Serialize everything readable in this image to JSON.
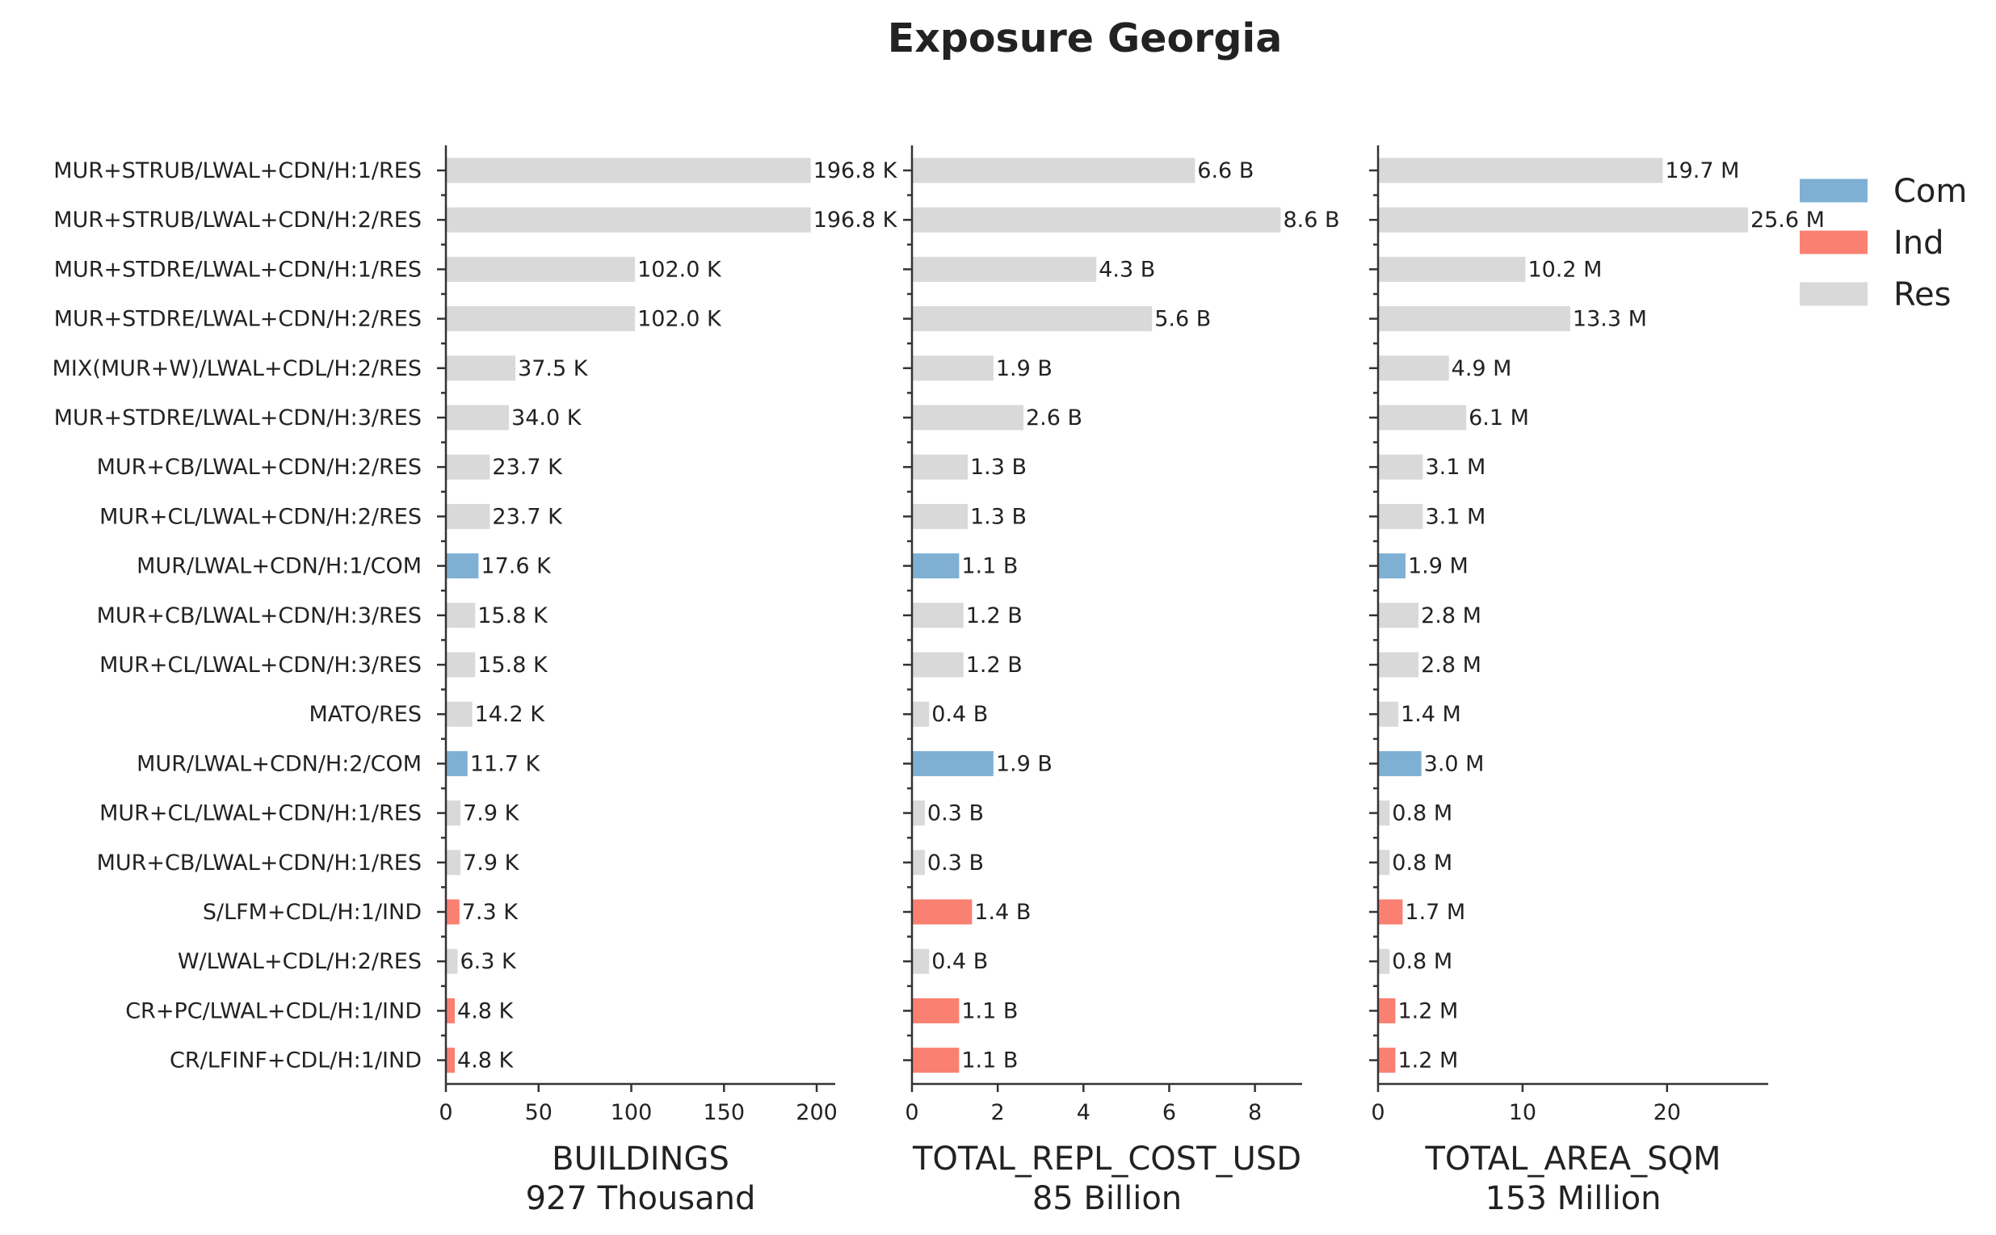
{
  "chart_data": {
    "type": "bar",
    "orientation": "horizontal",
    "title": "Exposure Georgia",
    "categories": [
      "MUR+STRUB/LWAL+CDN/H:1/RES",
      "MUR+STRUB/LWAL+CDN/H:2/RES",
      "MUR+STDRE/LWAL+CDN/H:1/RES",
      "MUR+STDRE/LWAL+CDN/H:2/RES",
      "MIX(MUR+W)/LWAL+CDL/H:2/RES",
      "MUR+STDRE/LWAL+CDN/H:3/RES",
      "MUR+CB/LWAL+CDN/H:2/RES",
      "MUR+CL/LWAL+CDN/H:2/RES",
      "MUR/LWAL+CDN/H:1/COM",
      "MUR+CB/LWAL+CDN/H:3/RES",
      "MUR+CL/LWAL+CDN/H:3/RES",
      "MATO/RES",
      "MUR/LWAL+CDN/H:2/COM",
      "MUR+CL/LWAL+CDN/H:1/RES",
      "MUR+CB/LWAL+CDN/H:1/RES",
      "S/LFM+CDL/H:1/IND",
      "W/LWAL+CDL/H:2/RES",
      "CR+PC/LWAL+CDL/H:1/IND",
      "CR/LFINF+CDL/H:1/IND"
    ],
    "occupancy": [
      "Res",
      "Res",
      "Res",
      "Res",
      "Res",
      "Res",
      "Res",
      "Res",
      "Com",
      "Res",
      "Res",
      "Res",
      "Com",
      "Res",
      "Res",
      "Ind",
      "Res",
      "Ind",
      "Ind"
    ],
    "legend": {
      "placement": "top-right",
      "entries": [
        {
          "name": "Com",
          "color": "#7fb0d4"
        },
        {
          "name": "Ind",
          "color": "#fa8072"
        },
        {
          "name": "Res",
          "color": "#d9d9d9"
        }
      ]
    },
    "panels": [
      {
        "xlabel": "BUILDINGS",
        "total": "927 Thousand",
        "xlim": [
          0,
          210
        ],
        "xticks": [
          0,
          50,
          100,
          150,
          200
        ],
        "values": [
          196.8,
          196.8,
          102.0,
          102.0,
          37.5,
          34.0,
          23.7,
          23.7,
          17.6,
          15.8,
          15.8,
          14.2,
          11.7,
          7.9,
          7.9,
          7.3,
          6.3,
          4.8,
          4.8
        ],
        "labels": [
          "196.8 K",
          "196.8 K",
          "102.0 K",
          "102.0 K",
          "37.5 K",
          "34.0 K",
          "23.7 K",
          "23.7 K",
          "17.6 K",
          "15.8 K",
          "15.8 K",
          "14.2 K",
          "11.7 K",
          "7.9 K",
          "7.9 K",
          "7.3 K",
          "6.3 K",
          "4.8 K",
          "4.8 K"
        ]
      },
      {
        "xlabel": "TOTAL_REPL_COST_USD",
        "total": "85 Billion",
        "xlim": [
          0,
          9.1
        ],
        "xticks": [
          0,
          2,
          4,
          6,
          8
        ],
        "values": [
          6.6,
          8.6,
          4.3,
          5.6,
          1.9,
          2.6,
          1.3,
          1.3,
          1.1,
          1.2,
          1.2,
          0.4,
          1.9,
          0.3,
          0.3,
          1.4,
          0.4,
          1.1,
          1.1
        ],
        "labels": [
          "6.6 B",
          "8.6 B",
          "4.3 B",
          "5.6 B",
          "1.9 B",
          "2.6 B",
          "1.3 B",
          "1.3 B",
          "1.1 B",
          "1.2 B",
          "1.2 B",
          "0.4 B",
          "1.9 B",
          "0.3 B",
          "0.3 B",
          "1.4 B",
          "0.4 B",
          "1.1 B",
          "1.1 B"
        ]
      },
      {
        "xlabel": "TOTAL_AREA_SQM",
        "total": "153 Million",
        "xlim": [
          0,
          27.0
        ],
        "xticks": [
          0,
          10,
          20
        ],
        "values": [
          19.7,
          25.6,
          10.2,
          13.3,
          4.9,
          6.1,
          3.1,
          3.1,
          1.9,
          2.8,
          2.8,
          1.4,
          3.0,
          0.8,
          0.8,
          1.7,
          0.8,
          1.2,
          1.2
        ],
        "labels": [
          "19.7 M",
          "25.6 M",
          "10.2 M",
          "13.3 M",
          "4.9 M",
          "6.1 M",
          "3.1 M",
          "3.1 M",
          "1.9 M",
          "2.8 M",
          "2.8 M",
          "1.4 M",
          "3.0 M",
          "0.8 M",
          "0.8 M",
          "1.7 M",
          "0.8 M",
          "1.2 M",
          "1.2 M"
        ]
      }
    ]
  }
}
